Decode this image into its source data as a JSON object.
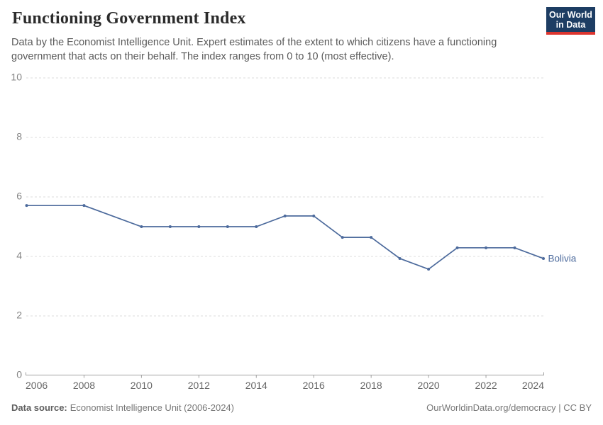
{
  "header": {
    "title": "Functioning Government Index",
    "subtitle": "Data by the Economist Intelligence Unit. Expert estimates of the extent to which citizens have a functioning government that acts on their behalf. The index ranges from 0 to 10 (most effective)."
  },
  "logo": {
    "line1": "Our World",
    "line2": "in Data"
  },
  "chart_data": {
    "type": "line",
    "title": "Functioning Government Index",
    "x": [
      2006,
      2008,
      2010,
      2011,
      2012,
      2013,
      2014,
      2015,
      2016,
      2017,
      2018,
      2019,
      2020,
      2021,
      2022,
      2023,
      2024
    ],
    "series": [
      {
        "name": "Bolivia",
        "color": "#4c6a9c",
        "values": [
          5.71,
          5.71,
          5.0,
          5.0,
          5.0,
          5.0,
          5.0,
          5.36,
          5.36,
          4.64,
          4.64,
          3.93,
          3.57,
          4.29,
          4.29,
          4.29,
          3.93
        ]
      }
    ],
    "xlabel": "",
    "ylabel": "",
    "xlim": [
      2006,
      2024
    ],
    "ylim": [
      0,
      10
    ],
    "yticks": [
      0,
      2,
      4,
      6,
      8,
      10
    ],
    "xticks": [
      2006,
      2008,
      2010,
      2012,
      2014,
      2016,
      2018,
      2020,
      2022,
      2024
    ],
    "grid": "horizontal-dashed",
    "legend_position": "end-of-line-label"
  },
  "colors": {
    "line": "#4c6a9c",
    "grid": "#dcdcdc",
    "axis": "#a1a1a1",
    "y_tick_label": "#858585",
    "x_tick_label": "#666666",
    "logo_bg": "#1d3d63",
    "logo_stripe": "#dc352f"
  },
  "footer": {
    "source_label": "Data source:",
    "source_value": "Economist Intelligence Unit (2006-2024)",
    "credit": "OurWorldinData.org/democracy | CC BY"
  }
}
